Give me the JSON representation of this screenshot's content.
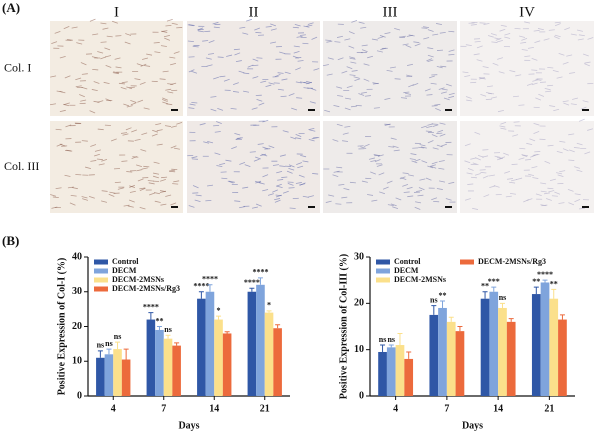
{
  "panel_a": {
    "label": "(A)",
    "columns": [
      "I",
      "II",
      "III",
      "IV"
    ],
    "rows": [
      "Col. I",
      "Col. III"
    ]
  },
  "panel_b_label": "(B)",
  "chart_data": [
    {
      "type": "bar",
      "ylabel": "Positive Expression of Col-I (%)",
      "xlabel": "Days",
      "categories": [
        "4",
        "7",
        "14",
        "21"
      ],
      "ylim": [
        0,
        40
      ],
      "yticks": [
        0,
        10,
        20,
        30,
        40
      ],
      "series": [
        {
          "name": "Control",
          "color": "#2f57a6",
          "values": [
            11,
            22,
            28,
            30
          ],
          "errors": [
            2,
            2,
            2,
            1
          ],
          "annotations": [
            "ns",
            "****",
            "****",
            "****"
          ]
        },
        {
          "name": "DECM",
          "color": "#7fa4dc",
          "values": [
            12,
            19,
            30,
            32
          ],
          "errors": [
            1.5,
            1,
            2,
            2
          ],
          "annotations": [
            "ns",
            "**",
            "****",
            "****"
          ]
        },
        {
          "name": "DECM-2MSNs",
          "color": "#fbe08b",
          "values": [
            13.5,
            16.5,
            22,
            24
          ],
          "errors": [
            2,
            1,
            1,
            0.5
          ],
          "annotations": [
            "ns",
            "ns",
            "*",
            "*"
          ]
        },
        {
          "name": "DECM-2MSNs/Rg3",
          "color": "#ec6a3c",
          "values": [
            10.5,
            14.5,
            18,
            19.5
          ],
          "errors": [
            3,
            0.8,
            0.5,
            1
          ],
          "annotations": [
            null,
            null,
            null,
            null
          ]
        }
      ]
    },
    {
      "type": "bar",
      "ylabel": "Positive Expression of Col-III (%)",
      "xlabel": "Days",
      "categories": [
        "4",
        "7",
        "14",
        "21"
      ],
      "ylim": [
        0,
        30
      ],
      "yticks": [
        0,
        10,
        20,
        30
      ],
      "series": [
        {
          "name": "Control",
          "color": "#2f57a6",
          "values": [
            9.5,
            17.5,
            21,
            22
          ],
          "errors": [
            1.5,
            2,
            1.5,
            1.5
          ],
          "annotations": [
            "ns",
            "ns",
            "**",
            "**"
          ]
        },
        {
          "name": "DECM",
          "color": "#7fa4dc",
          "values": [
            10.5,
            19,
            22.5,
            24.5
          ],
          "errors": [
            0.5,
            1.5,
            1,
            0.5
          ],
          "annotations": [
            "ns",
            "**",
            "***",
            "****"
          ]
        },
        {
          "name": "DECM-2MSNs",
          "color": "#fbe08b",
          "values": [
            11,
            16,
            19,
            21
          ],
          "errors": [
            2.5,
            1,
            1,
            2
          ],
          "annotations": [
            null,
            null,
            "ns",
            "**"
          ]
        },
        {
          "name": "DECM-2MSNs/Rg3",
          "color": "#ec6a3c",
          "values": [
            8,
            14,
            16,
            16.5
          ],
          "errors": [
            1.5,
            1,
            0.7,
            1
          ],
          "annotations": [
            null,
            null,
            null,
            null
          ]
        }
      ]
    }
  ]
}
